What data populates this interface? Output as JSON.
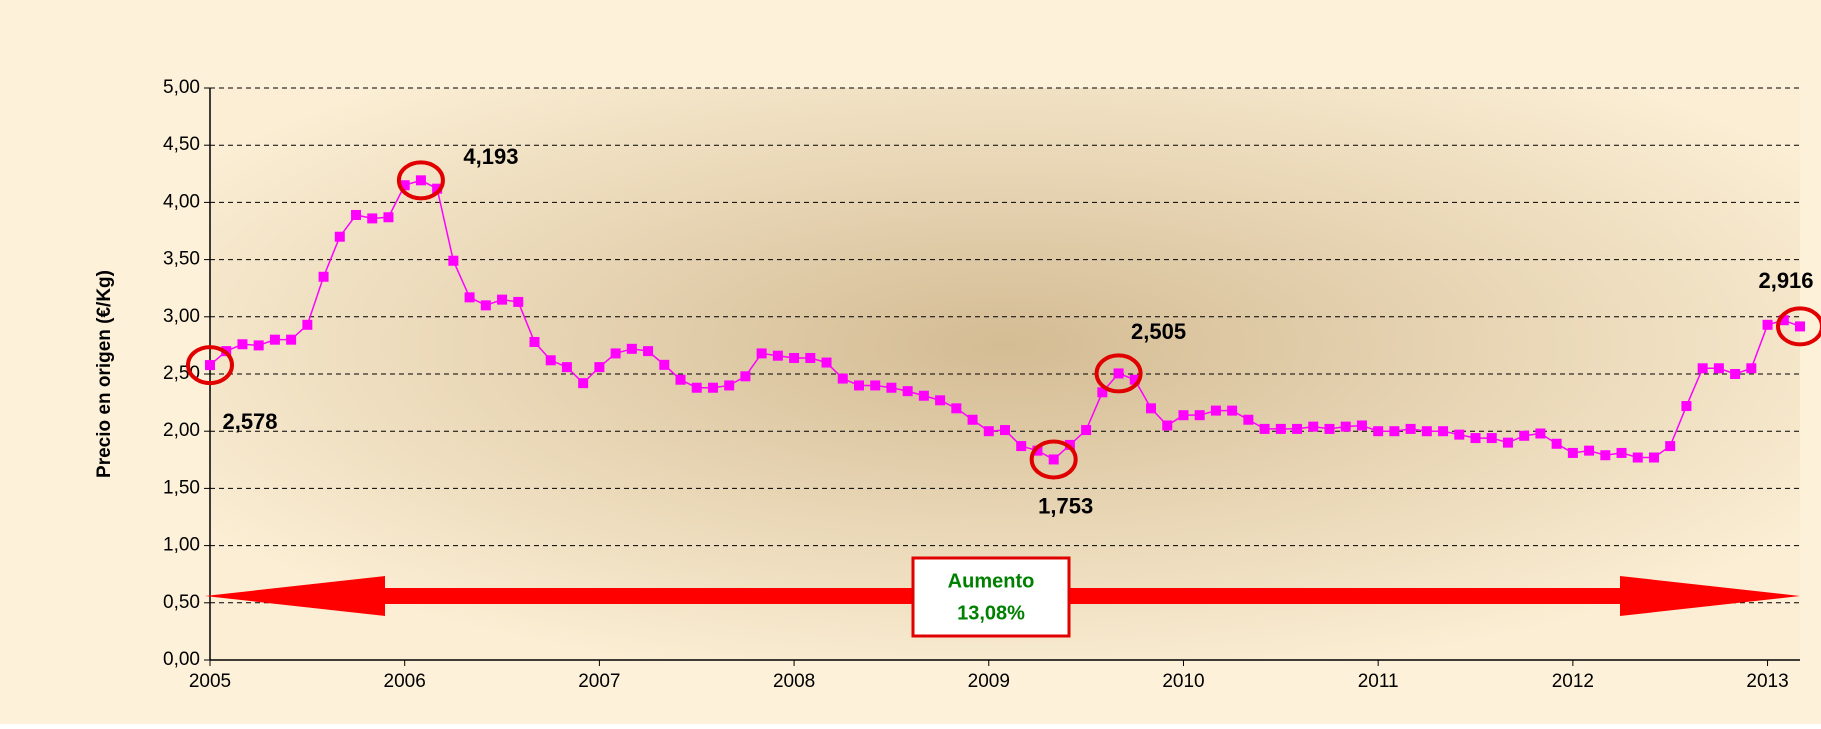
{
  "chart_data": {
    "type": "line",
    "y_label": "Precio en origen (€/Kg)",
    "annotation": {
      "title": "Aumento",
      "value": "13,08%"
    },
    "categories": [
      "2005",
      null,
      null,
      null,
      null,
      null,
      null,
      null,
      null,
      null,
      null,
      null,
      "2006",
      null,
      null,
      null,
      null,
      null,
      null,
      null,
      null,
      null,
      null,
      null,
      "2007",
      null,
      null,
      null,
      null,
      null,
      null,
      null,
      null,
      null,
      null,
      null,
      "2008",
      null,
      null,
      null,
      null,
      null,
      null,
      null,
      null,
      null,
      null,
      null,
      "2009",
      null,
      null,
      null,
      null,
      null,
      null,
      null,
      null,
      null,
      null,
      null,
      "2010",
      null,
      null,
      null,
      null,
      null,
      null,
      null,
      null,
      null,
      null,
      null,
      "2011",
      null,
      null,
      null,
      null,
      null,
      null,
      null,
      null,
      null,
      null,
      null,
      "2012",
      null,
      null,
      null,
      null,
      null,
      null,
      null,
      null,
      null,
      null,
      null,
      "2013",
      null,
      null
    ],
    "series": [
      {
        "color": "#ff00ff",
        "values": [
          2.578,
          2.7,
          2.76,
          2.75,
          2.8,
          2.8,
          2.93,
          3.35,
          3.7,
          3.89,
          3.86,
          3.87,
          4.15,
          4.193,
          4.12,
          3.49,
          3.17,
          3.1,
          3.15,
          3.13,
          2.78,
          2.62,
          2.56,
          2.42,
          2.56,
          2.68,
          2.72,
          2.7,
          2.58,
          2.45,
          2.38,
          2.38,
          2.4,
          2.48,
          2.68,
          2.66,
          2.64,
          2.64,
          2.6,
          2.46,
          2.4,
          2.4,
          2.38,
          2.35,
          2.31,
          2.27,
          2.2,
          2.1,
          2.0,
          2.01,
          1.87,
          1.83,
          1.753,
          1.88,
          2.01,
          2.34,
          2.505,
          2.45,
          2.2,
          2.05,
          2.14,
          2.14,
          2.18,
          2.18,
          2.1,
          2.02,
          2.02,
          2.02,
          2.04,
          2.02,
          2.04,
          2.05,
          2.0,
          2.0,
          2.02,
          2.0,
          2.0,
          1.97,
          1.94,
          1.94,
          1.9,
          1.96,
          1.98,
          1.89,
          1.81,
          1.83,
          1.79,
          1.81,
          1.77,
          1.77,
          1.87,
          2.22,
          2.55,
          2.55,
          2.5,
          2.55,
          2.93,
          2.97,
          2.916
        ],
        "value_labels": [
          "2,578",
          null,
          null,
          null,
          null,
          null,
          null,
          null,
          null,
          null,
          null,
          null,
          null,
          "4,193",
          null,
          null,
          null,
          null,
          null,
          null,
          null,
          null,
          null,
          null,
          null,
          null,
          null,
          null,
          null,
          null,
          null,
          null,
          null,
          null,
          null,
          null,
          null,
          null,
          null,
          null,
          null,
          null,
          null,
          null,
          null,
          null,
          null,
          null,
          null,
          null,
          null,
          null,
          "1,753",
          null,
          null,
          null,
          "2,505",
          null,
          null,
          null,
          null,
          null,
          null,
          null,
          null,
          null,
          null,
          null,
          null,
          null,
          null,
          null,
          null,
          null,
          null,
          null,
          null,
          null,
          null,
          null,
          null,
          null,
          null,
          null,
          null,
          null,
          null,
          null,
          null,
          null,
          null,
          null,
          null,
          null,
          null,
          null,
          null,
          null,
          "2,916"
        ]
      }
    ],
    "ylim": [
      0,
      5
    ],
    "yticks": [
      {
        "value": 0,
        "label": "0,00"
      },
      {
        "value": 0.5,
        "label": "0,50"
      },
      {
        "value": 1,
        "label": "1,00"
      },
      {
        "value": 1.5,
        "label": "1,50"
      },
      {
        "value": 2,
        "label": "2,00"
      },
      {
        "value": 2.5,
        "label": "2,50"
      },
      {
        "value": 3,
        "label": "3,00"
      },
      {
        "value": 3.5,
        "label": "3,50"
      },
      {
        "value": 4,
        "label": "4,00"
      },
      {
        "value": 4.5,
        "label": "4,50"
      },
      {
        "value": 5,
        "label": "5,00"
      }
    ],
    "grid": true,
    "circle_color": "#e00000"
  }
}
